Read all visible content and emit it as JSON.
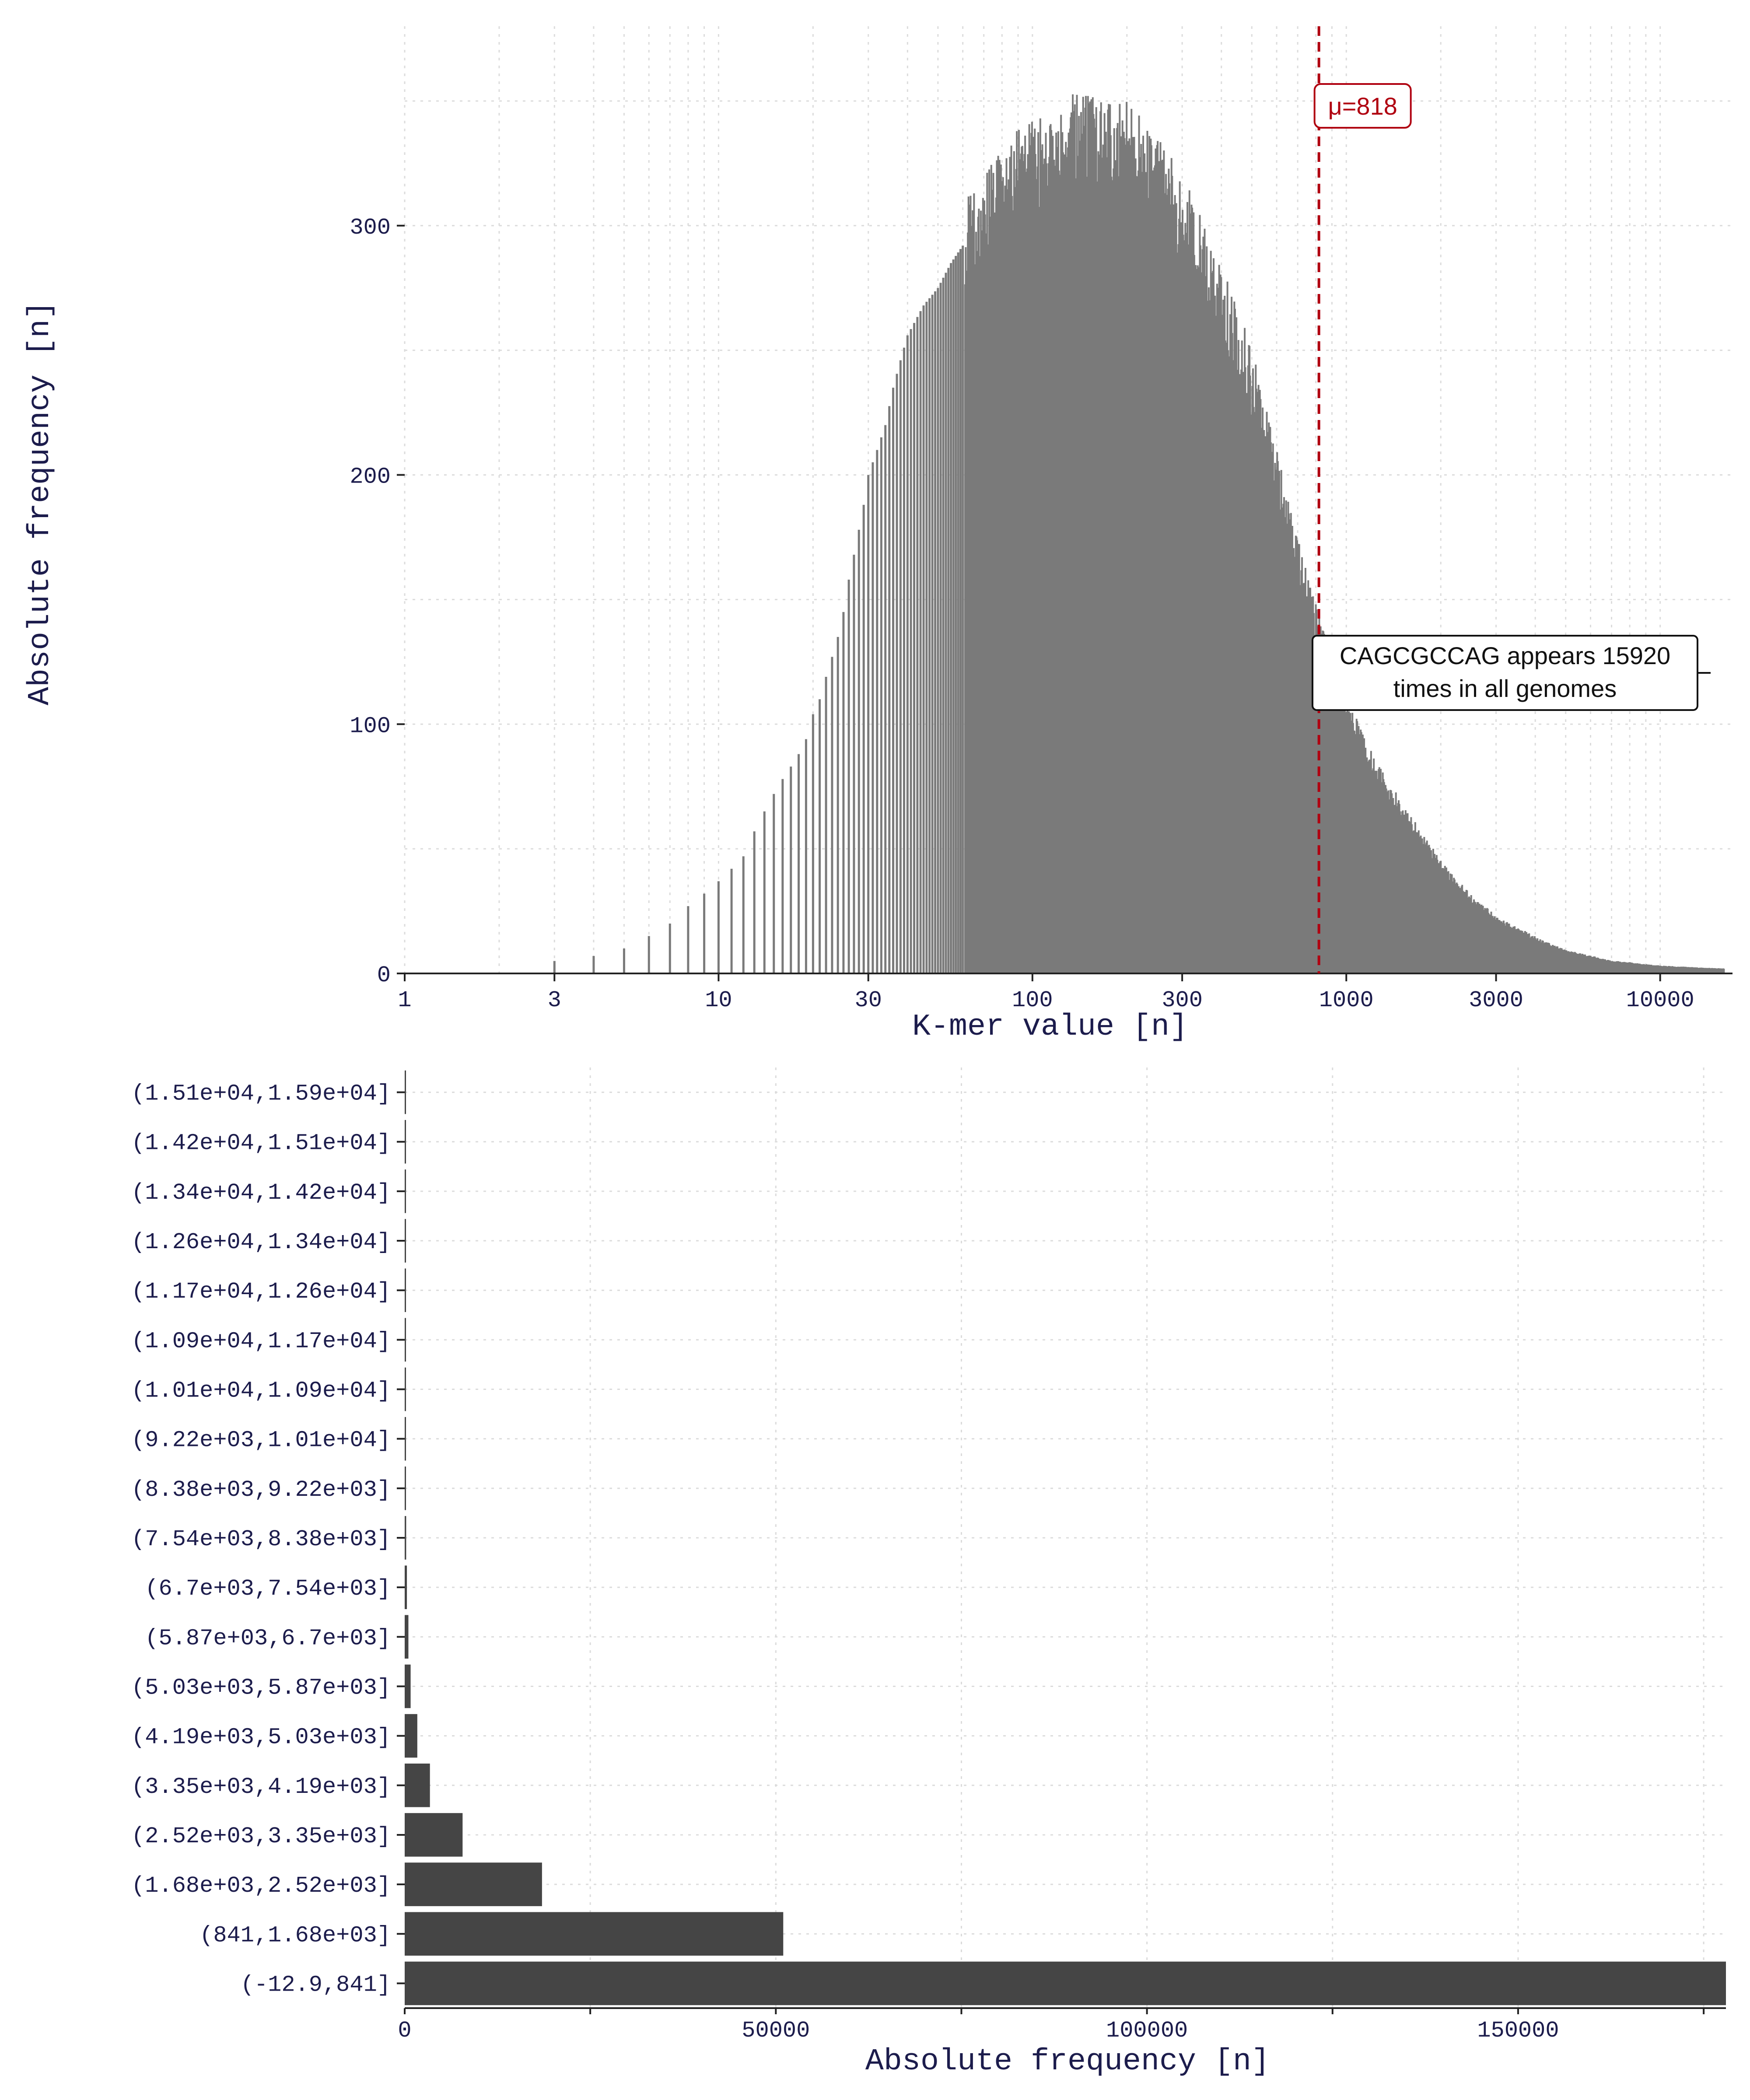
{
  "chart_data": [
    {
      "type": "bar",
      "chart_subtype": "histogram",
      "xlabel": "K-mer value [n]",
      "ylabel": "Absolute frequency [n]",
      "xscale": "log",
      "xlim": [
        1,
        17000
      ],
      "ylim": [
        0,
        380
      ],
      "xticks": [
        1,
        3,
        10,
        30,
        100,
        300,
        1000,
        3000,
        10000
      ],
      "xtick_labels": [
        "1",
        "3",
        "10",
        "30",
        "100",
        "300",
        "1000",
        "3000",
        "10000"
      ],
      "yticks": [
        0,
        100,
        200,
        300
      ],
      "ytick_labels": [
        "0",
        "100",
        "200",
        "300"
      ],
      "grid": true,
      "bar_color": "#7a7a7a",
      "mean_line": {
        "value": 818,
        "label": "μ=818",
        "color": "#b00010",
        "style": "dashed"
      },
      "annotation": {
        "lines": [
          "CAGCGCCAG appears 15920",
          "times in all genomes"
        ]
      },
      "distribution_points": {
        "x": [
          3,
          4,
          5,
          6,
          7,
          8,
          9,
          10,
          11,
          12,
          13,
          14,
          15,
          16,
          17,
          18,
          19,
          20,
          21,
          22,
          23,
          24,
          25,
          26,
          27,
          28,
          29,
          30,
          32,
          34,
          36,
          38,
          40,
          45,
          50,
          55,
          60,
          70,
          80,
          100,
          120,
          140,
          160,
          200,
          250,
          300,
          400,
          500,
          600,
          700,
          800,
          900,
          1000,
          1200,
          1500,
          2000,
          2500,
          3000,
          4000,
          5000,
          7000,
          10000,
          15000
        ],
        "y": [
          5,
          7,
          10,
          15,
          20,
          27,
          32,
          37,
          42,
          47,
          57,
          65,
          72,
          78,
          83,
          88,
          94,
          104,
          110,
          119,
          127,
          135,
          145,
          158,
          168,
          178,
          188,
          200,
          210,
          220,
          235,
          246,
          256,
          268,
          275,
          285,
          292,
          305,
          315,
          325,
          330,
          335,
          333,
          330,
          320,
          303,
          270,
          237,
          200,
          165,
          140,
          120,
          105,
          85,
          65,
          43,
          30,
          22,
          14,
          9,
          5,
          3,
          2
        ]
      }
    },
    {
      "type": "bar",
      "orientation": "horizontal",
      "xlabel": "Absolute frequency [n]",
      "ylabel": "",
      "xlim": [
        0,
        178000
      ],
      "xticks": [
        0,
        50000,
        100000,
        150000
      ],
      "xtick_labels": [
        "0",
        "50000",
        "100000",
        "150000"
      ],
      "grid": true,
      "bar_color": "#454545",
      "categories": [
        "(-12.9,841]",
        "(841,1.68e+03]",
        "(1.68e+03,2.52e+03]",
        "(2.52e+03,3.35e+03]",
        "(3.35e+03,4.19e+03]",
        "(4.19e+03,5.03e+03]",
        "(5.03e+03,5.87e+03]",
        "(5.87e+03,6.7e+03]",
        "(6.7e+03,7.54e+03]",
        "(7.54e+03,8.38e+03]",
        "(8.38e+03,9.22e+03]",
        "(9.22e+03,1.01e+04]",
        "(1.01e+04,1.09e+04]",
        "(1.09e+04,1.17e+04]",
        "(1.17e+04,1.26e+04]",
        "(1.26e+04,1.34e+04]",
        "(1.34e+04,1.42e+04]",
        "(1.42e+04,1.51e+04]",
        "(1.51e+04,1.59e+04]"
      ],
      "values": [
        178000,
        51000,
        18500,
        7800,
        3400,
        1700,
        800,
        500,
        300,
        200,
        150,
        100,
        60,
        40,
        30,
        20,
        10,
        5,
        3
      ]
    }
  ]
}
